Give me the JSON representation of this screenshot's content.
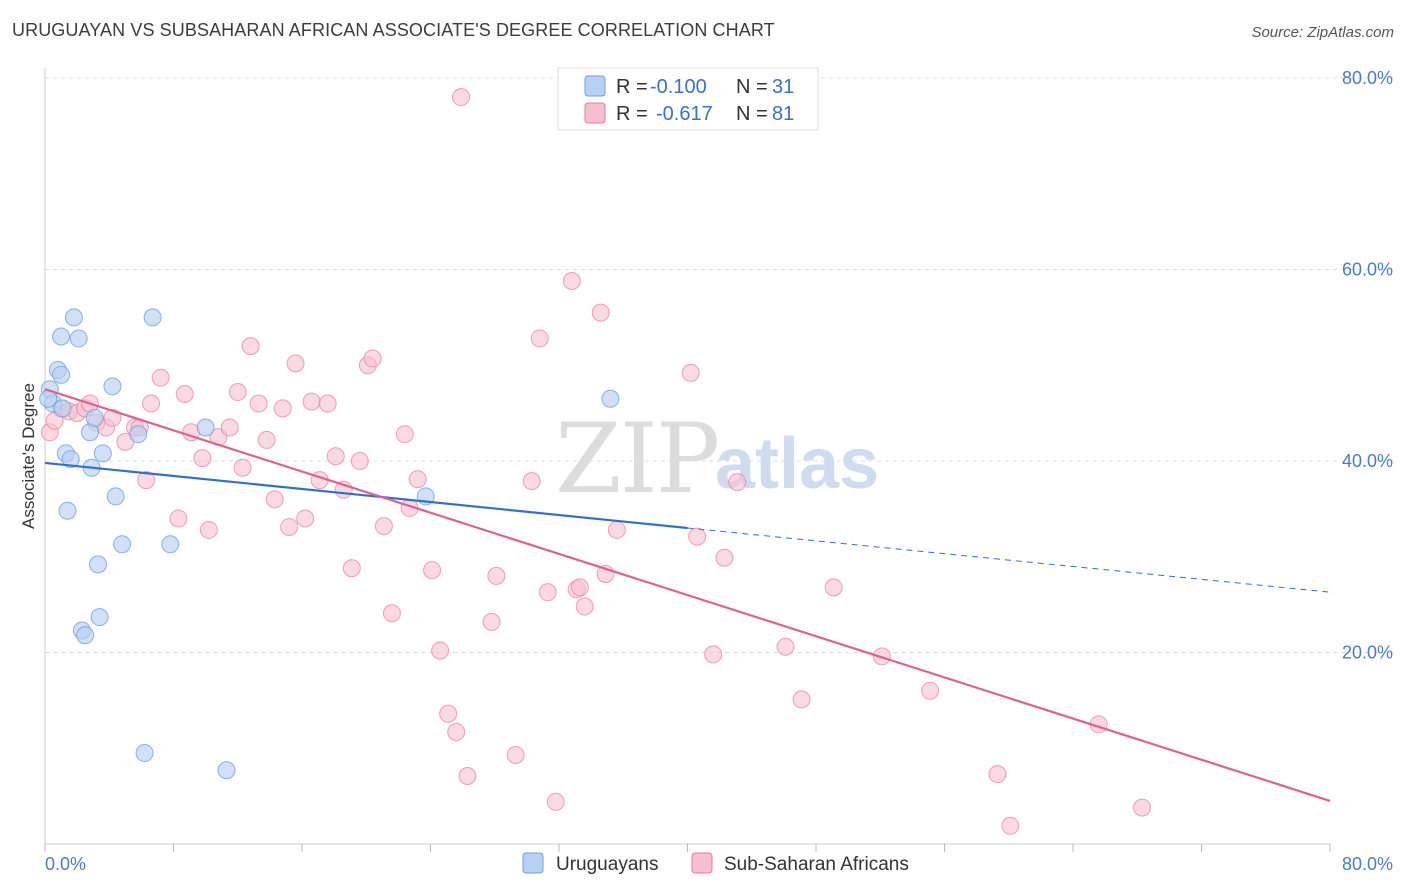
{
  "header": {
    "title": "URUGUAYAN VS SUBSAHARAN AFRICAN ASSOCIATE'S DEGREE CORRELATION CHART",
    "source": "Source: ZipAtlas.com"
  },
  "colors": {
    "blue": "#6ea0e0",
    "blue_fill": "#b8d0f2",
    "blue_line": "#2f6fce",
    "pink": "#e87aa0",
    "pink_fill": "#f6bfd0",
    "pink_line": "#e0608f",
    "tick_label": "#4a7cc9"
  },
  "legend": {
    "rows": [
      {
        "r_label": "R =",
        "r_value": "-0.100",
        "n_label": "N =",
        "n_value": "31"
      },
      {
        "r_label": "R =",
        "r_value": "-0.617",
        "n_label": "N =",
        "n_value": "81"
      }
    ]
  },
  "watermark": {
    "zip": "ZIP",
    "atlas": "atlas"
  },
  "chart_data": {
    "type": "scatter",
    "ylabel": "Associate's Degree",
    "xlabel": "",
    "xlim": [
      0,
      80
    ],
    "ylim": [
      0,
      80
    ],
    "x_tick_labels": [
      "0.0%",
      "80.0%"
    ],
    "y_ticks": [
      20,
      40,
      60,
      80
    ],
    "y_tick_labels": [
      "20.0%",
      "40.0%",
      "60.0%",
      "80.0%"
    ],
    "grid": "horizontal dashed",
    "series": [
      {
        "name": "Uruguayans",
        "points": [
          [
            0.3,
            47.5
          ],
          [
            0.5,
            46
          ],
          [
            0.8,
            49.5
          ],
          [
            1,
            49
          ],
          [
            1,
            53
          ],
          [
            1.1,
            45.5
          ],
          [
            1.3,
            40.8
          ],
          [
            1.4,
            34.8
          ],
          [
            1.6,
            40.2
          ],
          [
            1.8,
            55
          ],
          [
            2.1,
            52.8
          ],
          [
            2.3,
            22.3
          ],
          [
            2.5,
            21.8
          ],
          [
            2.8,
            43
          ],
          [
            2.9,
            39.3
          ],
          [
            3.1,
            44.5
          ],
          [
            3.3,
            29.2
          ],
          [
            3.4,
            23.7
          ],
          [
            3.6,
            40.8
          ],
          [
            4.2,
            47.8
          ],
          [
            4.4,
            36.3
          ],
          [
            4.8,
            31.3
          ],
          [
            5.8,
            42.8
          ],
          [
            6.2,
            9.5
          ],
          [
            6.7,
            55
          ],
          [
            7.8,
            31.3
          ],
          [
            10,
            43.5
          ],
          [
            11.3,
            7.7
          ],
          [
            23.7,
            36.3
          ],
          [
            35.2,
            46.5
          ],
          [
            0.2,
            46.5
          ]
        ],
        "trend": {
          "x0": 0,
          "y0": 39.8,
          "x1": 40,
          "y1": 33,
          "dash_x1": 80,
          "dash_y1": 26.3
        }
      },
      {
        "name": "Sub-Saharan Africans",
        "points": [
          [
            0.3,
            43
          ],
          [
            1,
            45.5
          ],
          [
            1.5,
            45.2
          ],
          [
            2,
            45
          ],
          [
            2.5,
            45.5
          ],
          [
            3.2,
            44
          ],
          [
            3.8,
            43.5
          ],
          [
            4.2,
            44.5
          ],
          [
            5,
            42
          ],
          [
            5.6,
            43.5
          ],
          [
            6.3,
            38
          ],
          [
            6.6,
            46
          ],
          [
            7.2,
            48.7
          ],
          [
            8.3,
            34
          ],
          [
            8.7,
            47
          ],
          [
            9.1,
            43
          ],
          [
            9.8,
            40.3
          ],
          [
            10.2,
            32.8
          ],
          [
            10.8,
            42.5
          ],
          [
            11.5,
            43.5
          ],
          [
            12,
            47.2
          ],
          [
            12.3,
            39.3
          ],
          [
            12.8,
            52
          ],
          [
            13.3,
            46
          ],
          [
            13.8,
            42.2
          ],
          [
            14.3,
            36
          ],
          [
            14.8,
            45.5
          ],
          [
            15.2,
            33.1
          ],
          [
            15.6,
            50.2
          ],
          [
            16.2,
            34
          ],
          [
            16.6,
            46.2
          ],
          [
            17.1,
            38
          ],
          [
            17.6,
            46
          ],
          [
            18.1,
            40.5
          ],
          [
            18.6,
            37
          ],
          [
            19.1,
            28.8
          ],
          [
            19.6,
            40
          ],
          [
            20.1,
            50
          ],
          [
            20.4,
            50.7
          ],
          [
            21.1,
            33.2
          ],
          [
            21.6,
            24.1
          ],
          [
            22.4,
            42.8
          ],
          [
            22.7,
            35.1
          ],
          [
            23.2,
            38.1
          ],
          [
            24.1,
            28.6
          ],
          [
            24.6,
            20.2
          ],
          [
            25.1,
            13.6
          ],
          [
            25.6,
            11.7
          ],
          [
            25.9,
            78
          ],
          [
            26.3,
            7.1
          ],
          [
            27.8,
            23.2
          ],
          [
            28.1,
            28
          ],
          [
            29.3,
            9.3
          ],
          [
            30.3,
            37.9
          ],
          [
            30.8,
            52.8
          ],
          [
            31.3,
            26.3
          ],
          [
            31.8,
            4.4
          ],
          [
            32.8,
            58.8
          ],
          [
            33.1,
            26.6
          ],
          [
            33.3,
            26.8
          ],
          [
            33.6,
            24.8
          ],
          [
            34.6,
            55.5
          ],
          [
            34.9,
            28.2
          ],
          [
            35.6,
            32.8
          ],
          [
            40.2,
            49.2
          ],
          [
            40.6,
            32.1
          ],
          [
            41.6,
            19.8
          ],
          [
            42.3,
            29.9
          ],
          [
            43.1,
            37.8
          ],
          [
            46.1,
            20.6
          ],
          [
            47.1,
            15.1
          ],
          [
            49.1,
            26.8
          ],
          [
            52.1,
            19.6
          ],
          [
            55.1,
            16
          ],
          [
            59.3,
            7.3
          ],
          [
            60.1,
            1.9
          ],
          [
            65.6,
            12.5
          ],
          [
            68.3,
            3.8
          ],
          [
            0.6,
            44.2
          ],
          [
            2.8,
            46
          ],
          [
            5.9,
            43.5
          ]
        ],
        "trend": {
          "x0": 0,
          "y0": 47.5,
          "x1": 80,
          "y1": 4.5
        }
      }
    ],
    "legend_position": "bottom-center"
  }
}
